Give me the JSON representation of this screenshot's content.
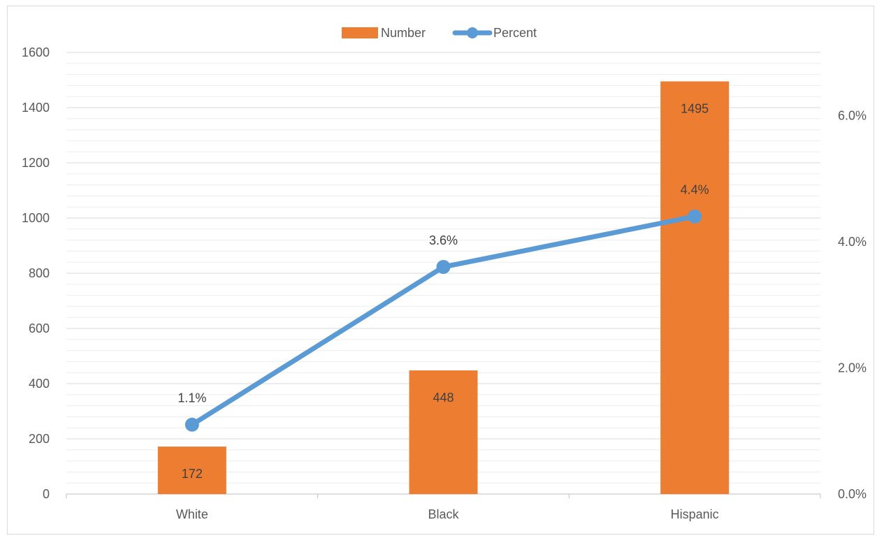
{
  "chart_data": {
    "type": "bar",
    "categories": [
      "White",
      "Black",
      "Hispanic"
    ],
    "series": [
      {
        "name": "Number",
        "kind": "bar",
        "axis": "left",
        "values": [
          172,
          448,
          1495
        ],
        "labels": [
          "172",
          "448",
          "1495"
        ],
        "color": "#ED7D31"
      },
      {
        "name": "Percent",
        "kind": "line",
        "axis": "right",
        "values": [
          1.1,
          3.6,
          4.4
        ],
        "labels": [
          "1.1%",
          "3.6%",
          "4.4%"
        ],
        "color": "#5B9BD5"
      }
    ],
    "y_left": {
      "range": [
        0,
        1600
      ],
      "ticks": [
        0,
        200,
        400,
        600,
        800,
        1000,
        1200,
        1400,
        1600
      ],
      "tick_labels": [
        "0",
        "200",
        "400",
        "600",
        "800",
        "1000",
        "1200",
        "1400",
        "1600"
      ]
    },
    "y_right": {
      "range": [
        0,
        7
      ],
      "ticks": [
        0,
        2,
        4,
        6
      ],
      "tick_labels": [
        "0.0%",
        "2.0%",
        "4.0%",
        "6.0%"
      ]
    },
    "title": "",
    "xlabel": "",
    "ylabel": "",
    "grid": true,
    "legend": "top-center",
    "colors": {
      "gridline": "#D9D9D9",
      "axis_line": "#BFBFBF",
      "tick_text": "#595959",
      "data_label": "#404040"
    }
  }
}
